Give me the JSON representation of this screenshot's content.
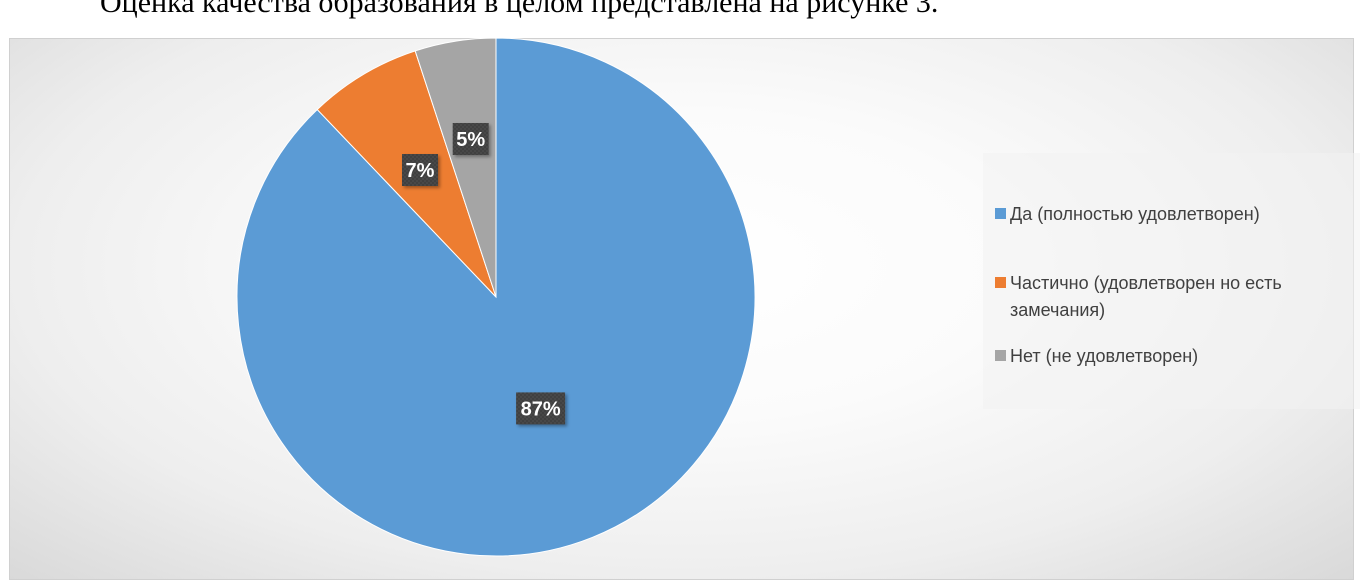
{
  "document": {
    "caption_fragment": "Оценка качества образования в целом представлена на рисунке 3."
  },
  "colors": {
    "yes": "#5b9bd5",
    "partial": "#ed7d31",
    "no": "#a5a5a5",
    "label_bg": "#404040",
    "label_text": "#ffffff"
  },
  "chart_data": {
    "type": "pie",
    "title": "",
    "start_angle_deg": 0,
    "direction": "clockwise",
    "legend_position": "right",
    "categories": [
      "Да (полностью удовлетворен)",
      "Частично (удовлетворен но есть замечания)",
      "Нет (не удовлетворен)"
    ],
    "values": [
      87,
      7,
      5
    ],
    "data_labels": [
      "87%",
      "7%",
      "5%"
    ],
    "colors": [
      "#5b9bd5",
      "#ed7d31",
      "#a5a5a5"
    ]
  }
}
